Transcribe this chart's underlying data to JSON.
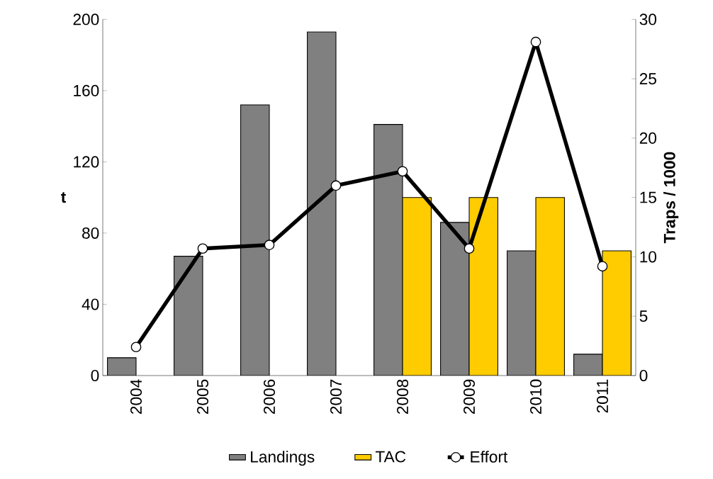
{
  "chart_data": {
    "type": "bar",
    "ylabel": "t",
    "y2label": "Traps / 1000",
    "categories": [
      "2004",
      "2005",
      "2006",
      "2007",
      "2008",
      "2009",
      "2010",
      "2011"
    ],
    "series": [
      {
        "name": "Landings",
        "color": "#808080",
        "values": [
          10,
          67,
          152,
          193,
          141,
          86,
          70,
          12
        ]
      },
      {
        "name": "TAC",
        "color": "#ffcc00",
        "values": [
          null,
          null,
          null,
          null,
          100,
          100,
          100,
          70
        ]
      },
      {
        "name": "Effort",
        "type": "line",
        "axis": "y2",
        "color": "#000000",
        "marker": "circle",
        "values": [
          2.4,
          10.7,
          11.0,
          16.0,
          17.2,
          10.7,
          28.1,
          9.2
        ]
      }
    ],
    "ylim": [
      0,
      200
    ],
    "yticks": [
      0,
      40,
      80,
      120,
      160,
      200
    ],
    "y2lim": [
      0,
      30
    ],
    "y2ticks": [
      0,
      5,
      10,
      15,
      20,
      25,
      30
    ],
    "legend": "bottom",
    "grid": false
  }
}
